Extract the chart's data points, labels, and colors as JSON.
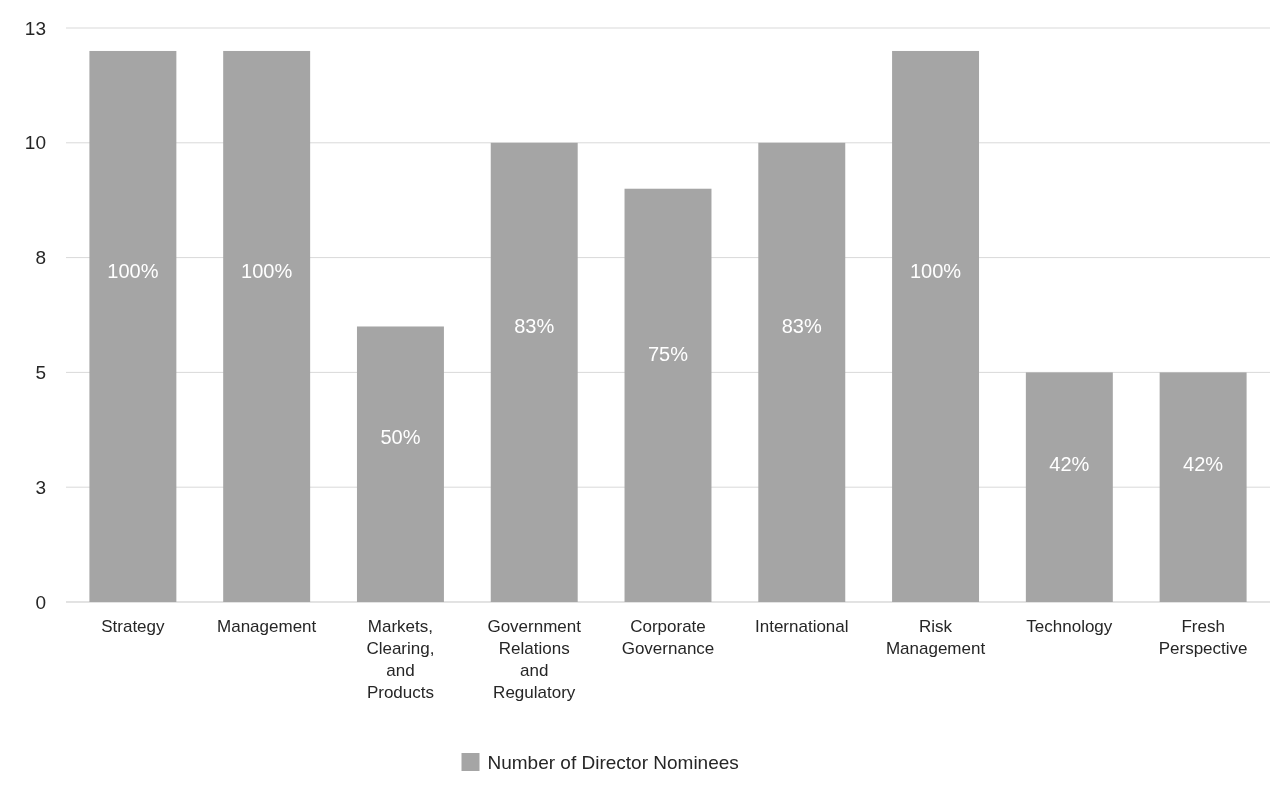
{
  "chart_data": {
    "type": "bar",
    "categories": [
      "Strategy",
      "Management",
      "Markets, Clearing, and Products",
      "Government Relations and Regulatory",
      "Corporate Governance",
      "International",
      "Risk Management",
      "Technology",
      "Fresh Perspective"
    ],
    "series": [
      {
        "name": "Number of Director Nominees",
        "color": "#a5a5a5",
        "values": [
          12,
          12,
          6,
          10,
          9,
          10,
          12,
          5,
          5
        ]
      }
    ],
    "annotations": [
      "100%",
      "100%",
      "50%",
      "83%",
      "75%",
      "83%",
      "100%",
      "42%",
      "42%"
    ],
    "ylim": [
      0,
      12.5
    ],
    "yticks": [
      0,
      {
        "value": 2.5,
        "label": "3"
      },
      5,
      {
        "value": 7.5,
        "label": "8"
      },
      10,
      {
        "value": 12.5,
        "label": "13"
      }
    ],
    "grid": "y",
    "legend": "bottom"
  }
}
